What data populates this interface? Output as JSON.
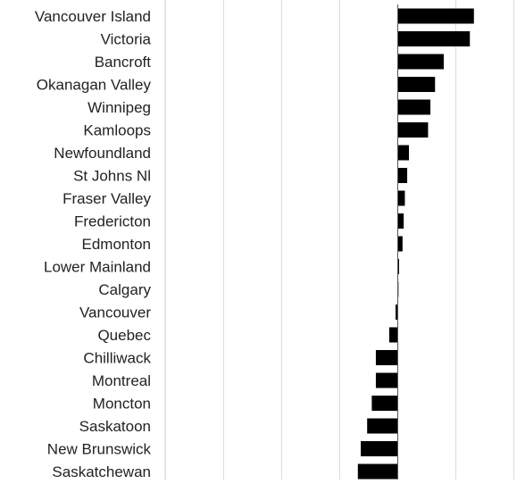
{
  "chart_data": {
    "type": "bar",
    "orientation": "horizontal",
    "categories": [
      "Vancouver Island",
      "Victoria",
      "Bancroft",
      "Okanagan Valley",
      "Winnipeg",
      "Kamloops",
      "Newfoundland",
      "St Johns Nl",
      "Fraser Valley",
      "Fredericton",
      "Edmonton",
      "Lower Mainland",
      "Calgary",
      "Vancouver",
      "Quebec",
      "Chilliwack",
      "Montreal",
      "Moncton",
      "Saskatoon",
      "New Brunswick",
      "Saskatchewan"
    ],
    "values": [
      1.32,
      1.25,
      0.8,
      0.65,
      0.57,
      0.53,
      0.2,
      0.17,
      0.13,
      0.11,
      0.09,
      0.03,
      0.02,
      -0.03,
      -0.14,
      -0.37,
      -0.37,
      -0.44,
      -0.52,
      -0.63,
      -0.68
    ],
    "xlim": [
      -4,
      2.2
    ],
    "grid_x": [
      -4,
      -3,
      -2,
      -1,
      0,
      1,
      2
    ],
    "grid": true,
    "bar_color": "#000000",
    "grid_color": "#dcdcdc",
    "axis_color": "#555555",
    "label_color": "#222222"
  }
}
